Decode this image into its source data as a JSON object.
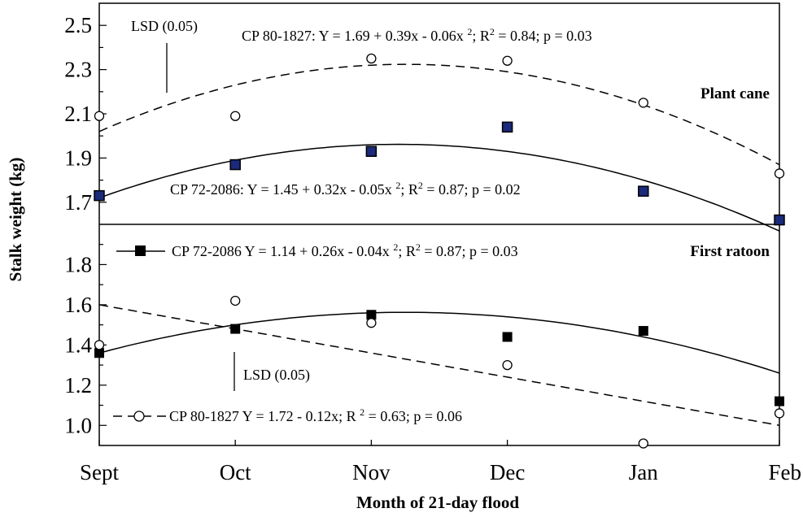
{
  "chart_data": {
    "type": "scatter",
    "x_categories": [
      "Sept",
      "Oct",
      "Nov",
      "Dec",
      "Jan",
      "Feb"
    ],
    "xlabel": "Month of 21-day flood",
    "ylabel": "Stalk weight (kg)",
    "panels": [
      {
        "id": "plant-cane",
        "title": "Plant cane",
        "ylim": [
          1.6,
          2.6
        ],
        "yticks": [
          1.7,
          1.9,
          2.1,
          2.3,
          2.5
        ],
        "ytick_labels": [
          "1.7",
          "1.9",
          "2.1",
          "2.3",
          "2.5"
        ],
        "series": [
          {
            "id": "cp80",
            "name": "CP 80-1827",
            "marker": "open-circle",
            "line": "dashed",
            "values": [
              2.09,
              2.09,
              2.35,
              2.34,
              2.15,
              1.83
            ],
            "fit": {
              "type": "quadratic",
              "a": 1.69,
              "b": 0.39,
              "c": -0.06,
              "x_start": 1
            },
            "equation": {
              "prefix": "CP 80-1827: Y = 1.69 + 0.39x - 0.06x ",
              "exp": "2",
              "mid": "; R",
              "exp2": "2",
              "suffix": " = 0.84; p = 0.03"
            }
          },
          {
            "id": "cp72",
            "name": "CP 72-2086",
            "marker": "filled-square",
            "line": "solid",
            "values": [
              1.73,
              1.87,
              1.93,
              2.04,
              1.75,
              1.62
            ],
            "fit": {
              "type": "quadratic",
              "a": 1.45,
              "b": 0.32,
              "c": -0.05,
              "x_start": 1
            },
            "equation": {
              "prefix": "CP 72-2086: Y = 1.45 + 0.32x - 0.05x ",
              "exp": "2",
              "mid": "; R",
              "exp2": "2",
              "suffix": " = 0.87; p = 0.02"
            }
          }
        ],
        "lsd_label": "LSD (0.05)"
      },
      {
        "id": "first-ratoon",
        "title": "First ratoon",
        "ylim": [
          0.9,
          2.0
        ],
        "yticks": [
          1.0,
          1.2,
          1.4,
          1.6,
          1.8
        ],
        "ytick_labels": [
          "1.0",
          "1.2",
          "1.4",
          "1.6",
          "1.8"
        ],
        "series": [
          {
            "id": "cp72",
            "name": "CP 72-2086",
            "marker": "filled-square",
            "line": "solid",
            "values": [
              1.36,
              1.48,
              1.55,
              1.44,
              1.47,
              1.12
            ],
            "fit": {
              "type": "quadratic",
              "a": 1.14,
              "b": 0.26,
              "c": -0.04,
              "x_start": 1
            },
            "equation": {
              "prefix": "CP 72-2086 Y = 1.14 + 0.26x - 0.04x ",
              "exp": "2",
              "mid": "; R",
              "exp2": "2",
              "suffix": " = 0.87;  p = 0.03"
            }
          },
          {
            "id": "cp80",
            "name": "CP 80-1827",
            "marker": "open-circle",
            "line": "dashed",
            "values": [
              1.4,
              1.62,
              1.51,
              1.3,
              0.91,
              1.06
            ],
            "fit": {
              "type": "linear",
              "a": 1.72,
              "b": -0.12,
              "x_start": 1
            },
            "equation": {
              "prefix": "CP 80-1827 Y = 1.72 - 0.12x; R ",
              "exp": "2",
              "mid": "",
              "exp2": "",
              "suffix": " = 0.63;  p = 0.06"
            }
          }
        ],
        "lsd_label": "LSD (0.05)"
      }
    ]
  }
}
